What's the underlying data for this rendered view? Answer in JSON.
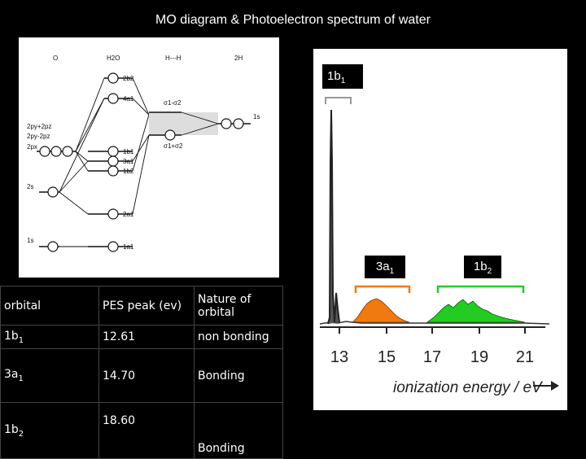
{
  "title": "MO diagram  & Photoelectron spectrum  of water",
  "mo_diagram": {
    "column_headers": [
      "O",
      "H2O",
      "H---H",
      "2H"
    ],
    "o_labels": [
      "2py+2pz",
      "2py-2pz",
      "2px",
      "2s",
      "1s"
    ],
    "h2o_orbitals": [
      "2b2",
      "4a1",
      "1b1",
      "3a1",
      "1b2",
      "2a1",
      "1a1"
    ],
    "hh_labels": [
      "σ1-σ2",
      "σ1+σ2"
    ],
    "h_label": "1s"
  },
  "pes": {
    "labels": {
      "b1": "1b",
      "b1_sub": "1",
      "a1": "3a",
      "a1_sub": "1",
      "b2": "1b",
      "b2_sub": "2"
    },
    "axis_ticks": [
      "13",
      "15",
      "17",
      "19",
      "21"
    ],
    "axis_label": "ionization energy / eV",
    "colors": {
      "band_3a1": "#f07a10",
      "band_1b2": "#22cc22",
      "bracket_3a1": "#f07a10",
      "bracket_1b2": "#22cc22",
      "bracket_1b1": "#999999"
    }
  },
  "table": {
    "headers": [
      "orbital",
      "PES peak (ev)",
      "Nature of orbital"
    ],
    "rows": [
      {
        "orbital": "1b",
        "sub": "1",
        "peak": "12.61",
        "nature": "non bonding"
      },
      {
        "orbital": "3a",
        "sub": "1",
        "peak": "14.70",
        "nature": "Bonding"
      },
      {
        "orbital": "1b",
        "sub": "2",
        "peak": "18.60",
        "nature": "Bonding"
      }
    ]
  }
}
